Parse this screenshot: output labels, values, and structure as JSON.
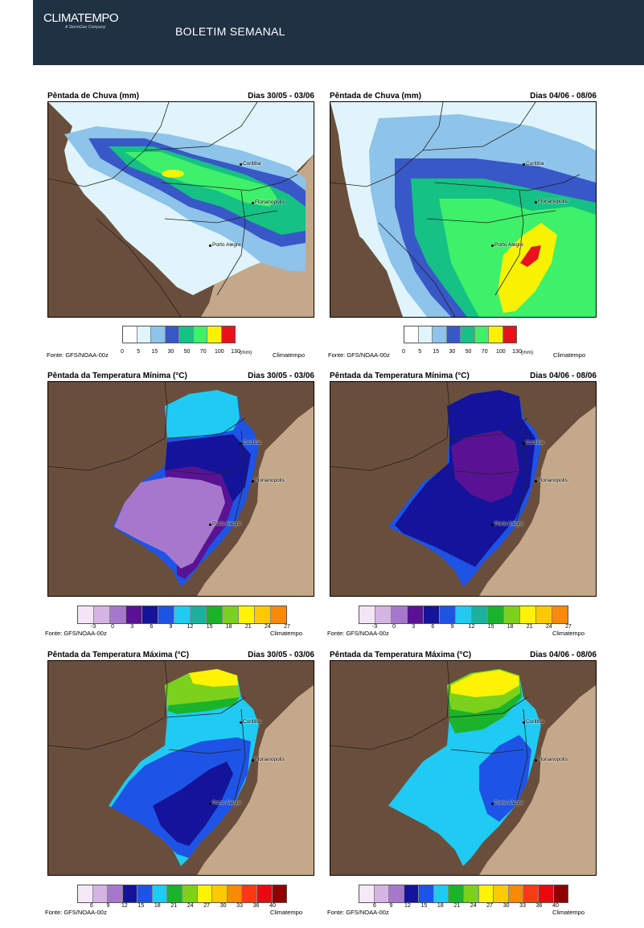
{
  "header": {
    "logo": "CLIMATEMPO",
    "logo_sub": "A StormGeo Company",
    "title": "BOLETIM SEMANAL",
    "bg": "#1f3243"
  },
  "cities": {
    "curitiba": "Curitiba",
    "florianopolis": "Florianopolis",
    "porto_alegre": "Porto Alegre"
  },
  "rain": {
    "title": "Pêntada de Chuva (mm)",
    "colors": [
      "#ffffff",
      "#dff5fb",
      "#8ec3ea",
      "#3858c7",
      "#16c184",
      "#3ef06a",
      "#f7f300",
      "#e8121c"
    ],
    "ticks": [
      "0",
      "5",
      "15",
      "30",
      "50",
      "70",
      "100",
      "130"
    ],
    "unit": "(mm)",
    "source": "Fonte: GFS/NOAA-00z",
    "brand": "Climatempo",
    "left_dates": "Dias 30/05 - 03/06",
    "right_dates": "Dias 04/06 - 08/06"
  },
  "tmin": {
    "title": "Pêntada da Temperatura Mínima (°C)",
    "colors": [
      "#f3e5f6",
      "#d5b4e3",
      "#a678cc",
      "#5a1295",
      "#13149a",
      "#1e54e6",
      "#1fcbf2",
      "#1cb19f",
      "#1ab32a",
      "#7bd11c",
      "#fdf303",
      "#fdc900",
      "#f88a08"
    ],
    "ticks": [
      "-3",
      "0",
      "3",
      "6",
      "9",
      "12",
      "15",
      "18",
      "21",
      "24",
      "27"
    ],
    "source": "Fonte: GFS/NOAA-00z",
    "brand": "Climatempo",
    "left_dates": "Dias 30/05 - 03/06",
    "right_dates": "Dias 04/06 - 08/06"
  },
  "tmax": {
    "title": "Pêntada da Temperatura Máxima (°C)",
    "colors": [
      "#f5e8f7",
      "#d5b4e3",
      "#a678cc",
      "#13149a",
      "#1e54e6",
      "#1fcbf2",
      "#1ab32a",
      "#7bd11c",
      "#fdf303",
      "#fdc900",
      "#f88a08",
      "#f93b14",
      "#e80a10",
      "#8c0000"
    ],
    "ticks": [
      "6",
      "9",
      "12",
      "15",
      "18",
      "21",
      "24",
      "27",
      "30",
      "33",
      "36",
      "40"
    ],
    "source": "Fonte: GFS/NOAA-00z",
    "brand": "Climatempo",
    "left_dates": "Dias 30/05 - 03/06",
    "right_dates": "Dias 04/06 - 08/06"
  }
}
